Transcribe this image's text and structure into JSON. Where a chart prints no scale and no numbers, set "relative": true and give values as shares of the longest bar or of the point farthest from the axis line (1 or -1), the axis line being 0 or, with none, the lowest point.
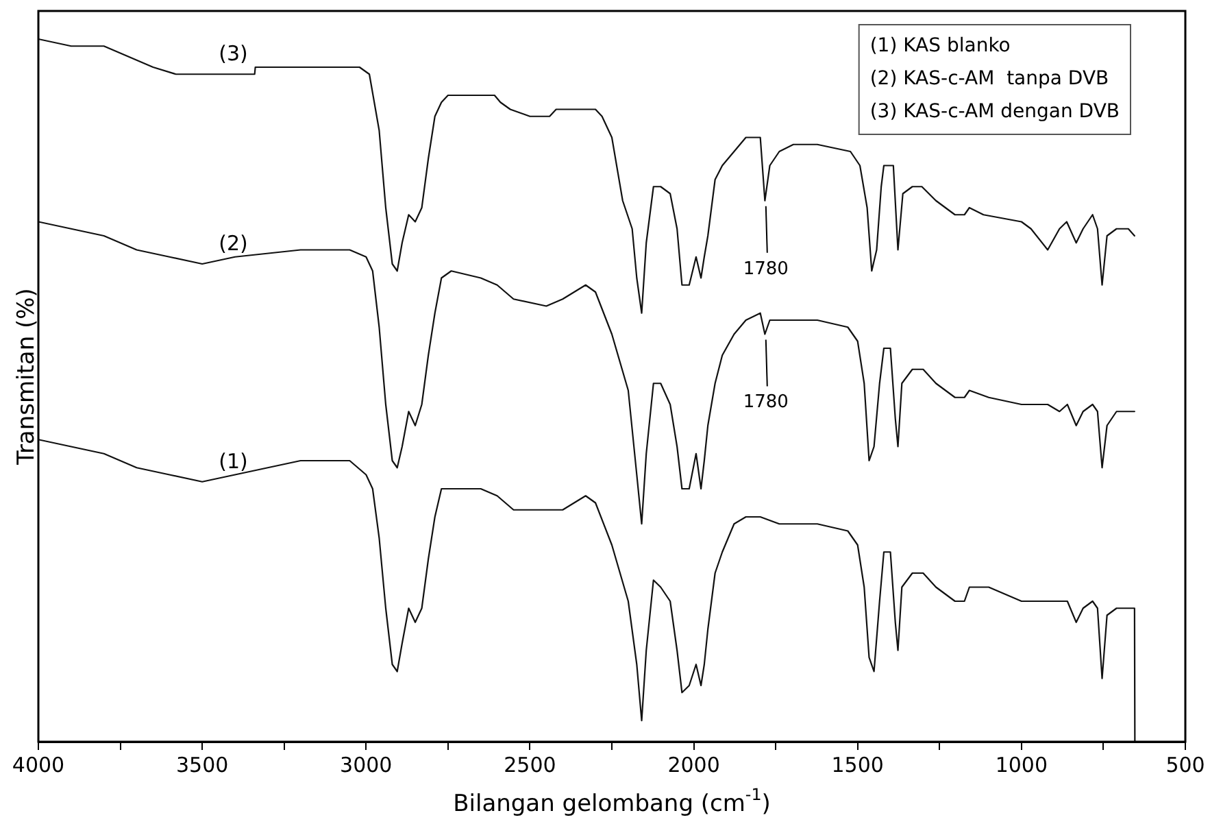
{
  "chart_data": {
    "type": "line",
    "relative": true,
    "xlabel": "Bilangan gelombang (cm$^{-1}$)",
    "ylabel": "Transmitan (%)",
    "xlim": [
      4000,
      500
    ],
    "xticks": [
      4000,
      {
        "value": 3750,
        "label": null
      },
      3500,
      {
        "value": 3250,
        "label": null
      },
      3000,
      {
        "value": 2750,
        "label": null
      },
      2500,
      {
        "value": 2250,
        "label": null
      },
      2000,
      {
        "value": 1750,
        "label": null
      },
      1500,
      {
        "value": 1250,
        "label": null
      },
      1000,
      {
        "value": 750,
        "label": null
      },
      500
    ],
    "grid": false,
    "legend": false,
    "marker": "none",
    "line_style": "solid",
    "annotations": [
      "(1) KAS blanko",
      "(2) KAS-c-AM  tanpa DVB",
      "(3) KAS-c-AM dengan DVB",
      {
        "text": "1780",
        "x": 1780,
        "y": 0.77
      },
      {
        "text": "1780",
        "x": 1780,
        "y": 0.58
      }
    ],
    "series": [
      {
        "name": "(1)",
        "color": "#111111",
        "x": [
          4000,
          3900,
          3800,
          3700,
          3600,
          3500,
          3400,
          3200,
          3050,
          3000,
          2980,
          2960,
          2940,
          2920,
          2905,
          2890,
          2870,
          2850,
          2830,
          2810,
          2790,
          2770,
          2740,
          2650,
          2600,
          2550,
          2450,
          2400,
          2330,
          2300,
          2250,
          2200,
          2174,
          2159,
          2145,
          2123,
          2101,
          2072,
          2051,
          2036,
          2014,
          1993,
          1978,
          1968,
          1957,
          1935,
          1913,
          1877,
          1841,
          1797,
          1739,
          1623,
          1530,
          1500,
          1480,
          1465,
          1450,
          1433,
          1420,
          1400,
          1385,
          1377,
          1365,
          1333,
          1300,
          1261,
          1203,
          1174,
          1159,
          1100,
          1000,
          920,
          884,
          860,
          833,
          812,
          783,
          768,
          754,
          739,
          710,
          655,
          654
        ],
        "values": [
          0.43,
          0.42,
          0.41,
          0.39,
          0.38,
          0.37,
          0.38,
          0.4,
          0.4,
          0.38,
          0.36,
          0.29,
          0.19,
          0.11,
          0.1,
          0.14,
          0.19,
          0.17,
          0.19,
          0.26,
          0.32,
          0.36,
          0.36,
          0.36,
          0.35,
          0.33,
          0.33,
          0.33,
          0.35,
          0.34,
          0.28,
          0.2,
          0.11,
          0.03,
          0.13,
          0.23,
          0.22,
          0.2,
          0.13,
          0.07,
          0.08,
          0.11,
          0.08,
          0.11,
          0.16,
          0.24,
          0.27,
          0.31,
          0.32,
          0.32,
          0.31,
          0.31,
          0.3,
          0.28,
          0.22,
          0.12,
          0.1,
          0.2,
          0.27,
          0.27,
          0.17,
          0.13,
          0.22,
          0.24,
          0.24,
          0.22,
          0.2,
          0.2,
          0.22,
          0.22,
          0.2,
          0.2,
          0.2,
          0.2,
          0.17,
          0.19,
          0.2,
          0.19,
          0.09,
          0.18,
          0.19,
          0.19,
          0
        ]
      },
      {
        "name": "(2)",
        "color": "#111111",
        "x": [
          4000,
          3900,
          3800,
          3700,
          3600,
          3500,
          3400,
          3200,
          3050,
          3000,
          2980,
          2960,
          2940,
          2920,
          2905,
          2890,
          2870,
          2850,
          2830,
          2810,
          2790,
          2770,
          2740,
          2650,
          2600,
          2550,
          2450,
          2400,
          2330,
          2300,
          2250,
          2200,
          2174,
          2159,
          2145,
          2123,
          2101,
          2072,
          2051,
          2036,
          2014,
          1993,
          1978,
          1968,
          1957,
          1935,
          1913,
          1877,
          1841,
          1797,
          1783,
          1768,
          1739,
          1623,
          1530,
          1500,
          1480,
          1465,
          1450,
          1433,
          1420,
          1400,
          1385,
          1377,
          1365,
          1333,
          1300,
          1261,
          1203,
          1174,
          1159,
          1100,
          1000,
          920,
          884,
          860,
          833,
          812,
          783,
          768,
          754,
          739,
          710,
          655
        ],
        "values": [
          0.74,
          0.73,
          0.72,
          0.7,
          0.69,
          0.68,
          0.69,
          0.7,
          0.7,
          0.69,
          0.67,
          0.59,
          0.48,
          0.4,
          0.39,
          0.42,
          0.47,
          0.45,
          0.48,
          0.55,
          0.61,
          0.66,
          0.67,
          0.66,
          0.65,
          0.63,
          0.62,
          0.63,
          0.65,
          0.64,
          0.58,
          0.5,
          0.38,
          0.31,
          0.41,
          0.51,
          0.51,
          0.48,
          0.42,
          0.36,
          0.36,
          0.41,
          0.36,
          0.4,
          0.45,
          0.51,
          0.55,
          0.58,
          0.6,
          0.61,
          0.58,
          0.6,
          0.6,
          0.6,
          0.59,
          0.57,
          0.51,
          0.4,
          0.42,
          0.51,
          0.56,
          0.56,
          0.46,
          0.42,
          0.51,
          0.53,
          0.53,
          0.51,
          0.49,
          0.49,
          0.5,
          0.49,
          0.48,
          0.48,
          0.47,
          0.48,
          0.45,
          0.47,
          0.48,
          0.47,
          0.39,
          0.45,
          0.47,
          0.47
        ]
      },
      {
        "name": "(3)",
        "color": "#111111",
        "x": [
          4000,
          3900,
          3800,
          3700,
          3650,
          3580,
          3340,
          3338,
          3020,
          2990,
          2960,
          2940,
          2920,
          2905,
          2890,
          2870,
          2850,
          2830,
          2810,
          2790,
          2770,
          2750,
          2608,
          2590,
          2560,
          2500,
          2440,
          2420,
          2300,
          2280,
          2250,
          2217,
          2188,
          2174,
          2159,
          2145,
          2123,
          2101,
          2072,
          2051,
          2036,
          2014,
          1993,
          1978,
          1968,
          1957,
          1935,
          1913,
          1877,
          1841,
          1797,
          1783,
          1768,
          1739,
          1696,
          1623,
          1522,
          1493,
          1471,
          1457,
          1442,
          1428,
          1420,
          1391,
          1377,
          1362,
          1333,
          1304,
          1261,
          1203,
          1174,
          1159,
          1116,
          1000,
          971,
          920,
          884,
          862,
          833,
          812,
          783,
          768,
          754,
          739,
          710,
          674,
          655
        ],
        "values": [
          1.0,
          0.99,
          0.99,
          0.97,
          0.96,
          0.95,
          0.95,
          0.96,
          0.96,
          0.95,
          0.87,
          0.76,
          0.68,
          0.67,
          0.71,
          0.75,
          0.74,
          0.76,
          0.83,
          0.89,
          0.91,
          0.92,
          0.92,
          0.91,
          0.9,
          0.89,
          0.89,
          0.9,
          0.9,
          0.89,
          0.86,
          0.77,
          0.73,
          0.66,
          0.61,
          0.71,
          0.79,
          0.79,
          0.78,
          0.73,
          0.65,
          0.65,
          0.69,
          0.66,
          0.69,
          0.72,
          0.8,
          0.82,
          0.84,
          0.86,
          0.86,
          0.77,
          0.82,
          0.84,
          0.85,
          0.85,
          0.84,
          0.82,
          0.76,
          0.67,
          0.7,
          0.79,
          0.82,
          0.82,
          0.7,
          0.78,
          0.79,
          0.79,
          0.77,
          0.75,
          0.75,
          0.76,
          0.75,
          0.74,
          0.73,
          0.7,
          0.73,
          0.74,
          0.71,
          0.73,
          0.75,
          0.73,
          0.65,
          0.72,
          0.73,
          0.73,
          0.72
        ]
      }
    ]
  }
}
